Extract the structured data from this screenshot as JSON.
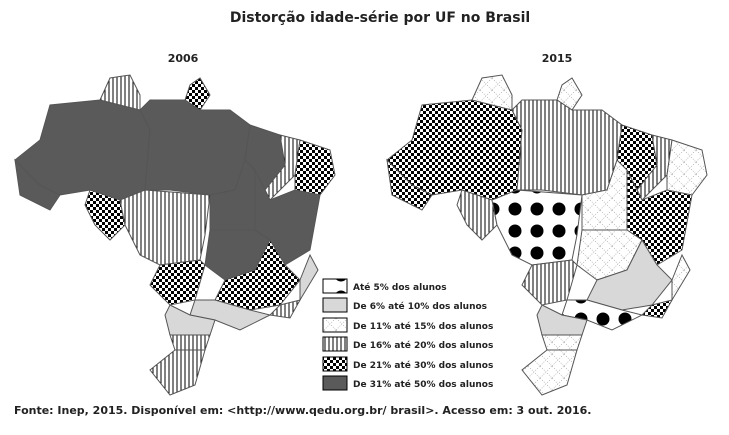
{
  "title": "Distorção idade-série por UF no Brasil",
  "maps": [
    {
      "label": "2006"
    },
    {
      "label": "2015"
    }
  ],
  "legend": {
    "items": [
      "Até 5% dos alunos",
      "De 6% até 10% dos alunos",
      "De 11% até 15% dos alunos",
      "De 16% até 20% dos alunos",
      "De 21% até 30% dos alunos",
      "De 31% até 50% dos alunos"
    ]
  },
  "source": "Fonte: Inep, 2015.  Disponível em: <http://www.qedu.org.br/ brasil>. Acesso em: 3 out. 2016."
}
